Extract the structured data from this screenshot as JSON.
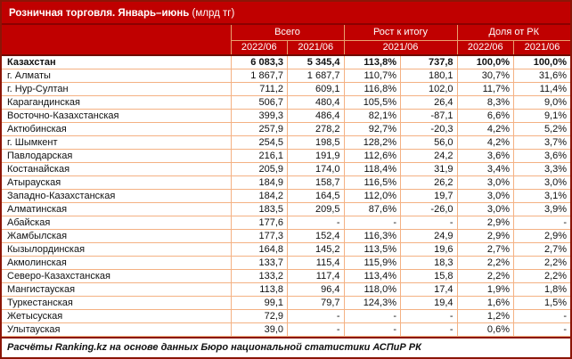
{
  "title": {
    "main": "Розничная торговля. Январь–июнь",
    "unit": " (млрд тг)"
  },
  "colors": {
    "header_red": "#C00000",
    "dark_red_border": "#8B1507",
    "cell_border_peach": "#F4B183",
    "header_text": "#FFFFFF",
    "body_text": "#111111"
  },
  "footer": {
    "text": "Расчёты Ranking.kz на основе данных Бюро национальной статистики АСПиР РК"
  },
  "chart_data": {
    "type": "table",
    "title": "Розничная торговля. Январь–июнь (млрд тг)",
    "column_groups": [
      {
        "label": "Всего",
        "span": 2
      },
      {
        "label": "Рост к итогу",
        "span": 2
      },
      {
        "label": "Доля от РК",
        "span": 2
      }
    ],
    "subheaders": [
      "2022/06",
      "2021/06",
      "2021/06",
      "2022/06",
      "2021/06"
    ],
    "rows": [
      {
        "region": "Казахстан",
        "bold": true,
        "values": [
          "6 083,3",
          "5 345,4",
          "113,8%",
          "737,8",
          "100,0%",
          "100,0%"
        ]
      },
      {
        "region": "г. Алматы",
        "bold": false,
        "values": [
          "1 867,7",
          "1 687,7",
          "110,7%",
          "180,1",
          "30,7%",
          "31,6%"
        ]
      },
      {
        "region": "г. Нур-Султан",
        "bold": false,
        "values": [
          "711,2",
          "609,1",
          "116,8%",
          "102,0",
          "11,7%",
          "11,4%"
        ]
      },
      {
        "region": "Карагандинская",
        "bold": false,
        "values": [
          "506,7",
          "480,4",
          "105,5%",
          "26,4",
          "8,3%",
          "9,0%"
        ]
      },
      {
        "region": "Восточно-Казахстанская",
        "bold": false,
        "values": [
          "399,3",
          "486,4",
          "82,1%",
          "-87,1",
          "6,6%",
          "9,1%"
        ]
      },
      {
        "region": "Актюбинская",
        "bold": false,
        "values": [
          "257,9",
          "278,2",
          "92,7%",
          "-20,3",
          "4,2%",
          "5,2%"
        ]
      },
      {
        "region": "г. Шымкент",
        "bold": false,
        "values": [
          "254,5",
          "198,5",
          "128,2%",
          "56,0",
          "4,2%",
          "3,7%"
        ]
      },
      {
        "region": "Павлодарская",
        "bold": false,
        "values": [
          "216,1",
          "191,9",
          "112,6%",
          "24,2",
          "3,6%",
          "3,6%"
        ]
      },
      {
        "region": "Костанайская",
        "bold": false,
        "values": [
          "205,9",
          "174,0",
          "118,4%",
          "31,9",
          "3,4%",
          "3,3%"
        ]
      },
      {
        "region": "Атырауская",
        "bold": false,
        "values": [
          "184,9",
          "158,7",
          "116,5%",
          "26,2",
          "3,0%",
          "3,0%"
        ]
      },
      {
        "region": "Западно-Казахстанская",
        "bold": false,
        "values": [
          "184,2",
          "164,5",
          "112,0%",
          "19,7",
          "3,0%",
          "3,1%"
        ]
      },
      {
        "region": "Алматинская",
        "bold": false,
        "values": [
          "183,5",
          "209,5",
          "87,6%",
          "-26,0",
          "3,0%",
          "3,9%"
        ]
      },
      {
        "region": "Абайская",
        "bold": false,
        "values": [
          "177,6",
          "-",
          "-",
          "-",
          "2,9%",
          "-"
        ]
      },
      {
        "region": "Жамбылская",
        "bold": false,
        "values": [
          "177,3",
          "152,4",
          "116,3%",
          "24,9",
          "2,9%",
          "2,9%"
        ]
      },
      {
        "region": "Кызылординская",
        "bold": false,
        "values": [
          "164,8",
          "145,2",
          "113,5%",
          "19,6",
          "2,7%",
          "2,7%"
        ]
      },
      {
        "region": "Акмолинская",
        "bold": false,
        "values": [
          "133,7",
          "115,4",
          "115,9%",
          "18,3",
          "2,2%",
          "2,2%"
        ]
      },
      {
        "region": "Северо-Казахстанская",
        "bold": false,
        "values": [
          "133,2",
          "117,4",
          "113,4%",
          "15,8",
          "2,2%",
          "2,2%"
        ]
      },
      {
        "region": "Мангистауская",
        "bold": false,
        "values": [
          "113,8",
          "96,4",
          "118,0%",
          "17,4",
          "1,9%",
          "1,8%"
        ]
      },
      {
        "region": "Туркестанская",
        "bold": false,
        "values": [
          "99,1",
          "79,7",
          "124,3%",
          "19,4",
          "1,6%",
          "1,5%"
        ]
      },
      {
        "region": "Жетысуская",
        "bold": false,
        "values": [
          "72,9",
          "-",
          "-",
          "-",
          "1,2%",
          "-"
        ]
      },
      {
        "region": "Улытауская",
        "bold": false,
        "values": [
          "39,0",
          "-",
          "-",
          "-",
          "0,6%",
          "-"
        ]
      }
    ]
  }
}
